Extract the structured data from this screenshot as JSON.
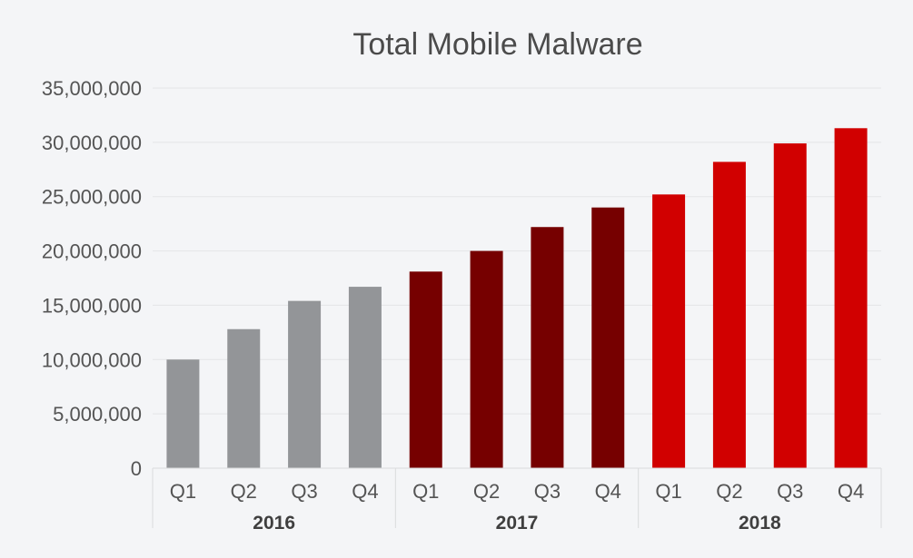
{
  "chart_data": {
    "type": "bar",
    "title": "Total Mobile Malware",
    "xlabel": "",
    "ylabel": "",
    "ylim": [
      0,
      35000000
    ],
    "yticks": [
      0,
      5000000,
      10000000,
      15000000,
      20000000,
      25000000,
      30000000,
      35000000
    ],
    "ytick_labels": [
      "0",
      "5,000,000",
      "10,000,000",
      "15,000,000",
      "20,000,000",
      "25,000,000",
      "30,000,000",
      "35,000,000"
    ],
    "grid": true,
    "legend": "none",
    "groups": [
      {
        "label": "2016",
        "color": "#939598",
        "categories": [
          "Q1",
          "Q2",
          "Q3",
          "Q4"
        ],
        "values": [
          10000000,
          12800000,
          15400000,
          16700000
        ]
      },
      {
        "label": "2017",
        "color": "#760000",
        "categories": [
          "Q1",
          "Q2",
          "Q3",
          "Q4"
        ],
        "values": [
          18100000,
          20000000,
          22200000,
          24000000
        ]
      },
      {
        "label": "2018",
        "color": "#d10000",
        "categories": [
          "Q1",
          "Q2",
          "Q3",
          "Q4"
        ],
        "values": [
          25200000,
          28200000,
          29900000,
          31300000
        ]
      }
    ]
  }
}
